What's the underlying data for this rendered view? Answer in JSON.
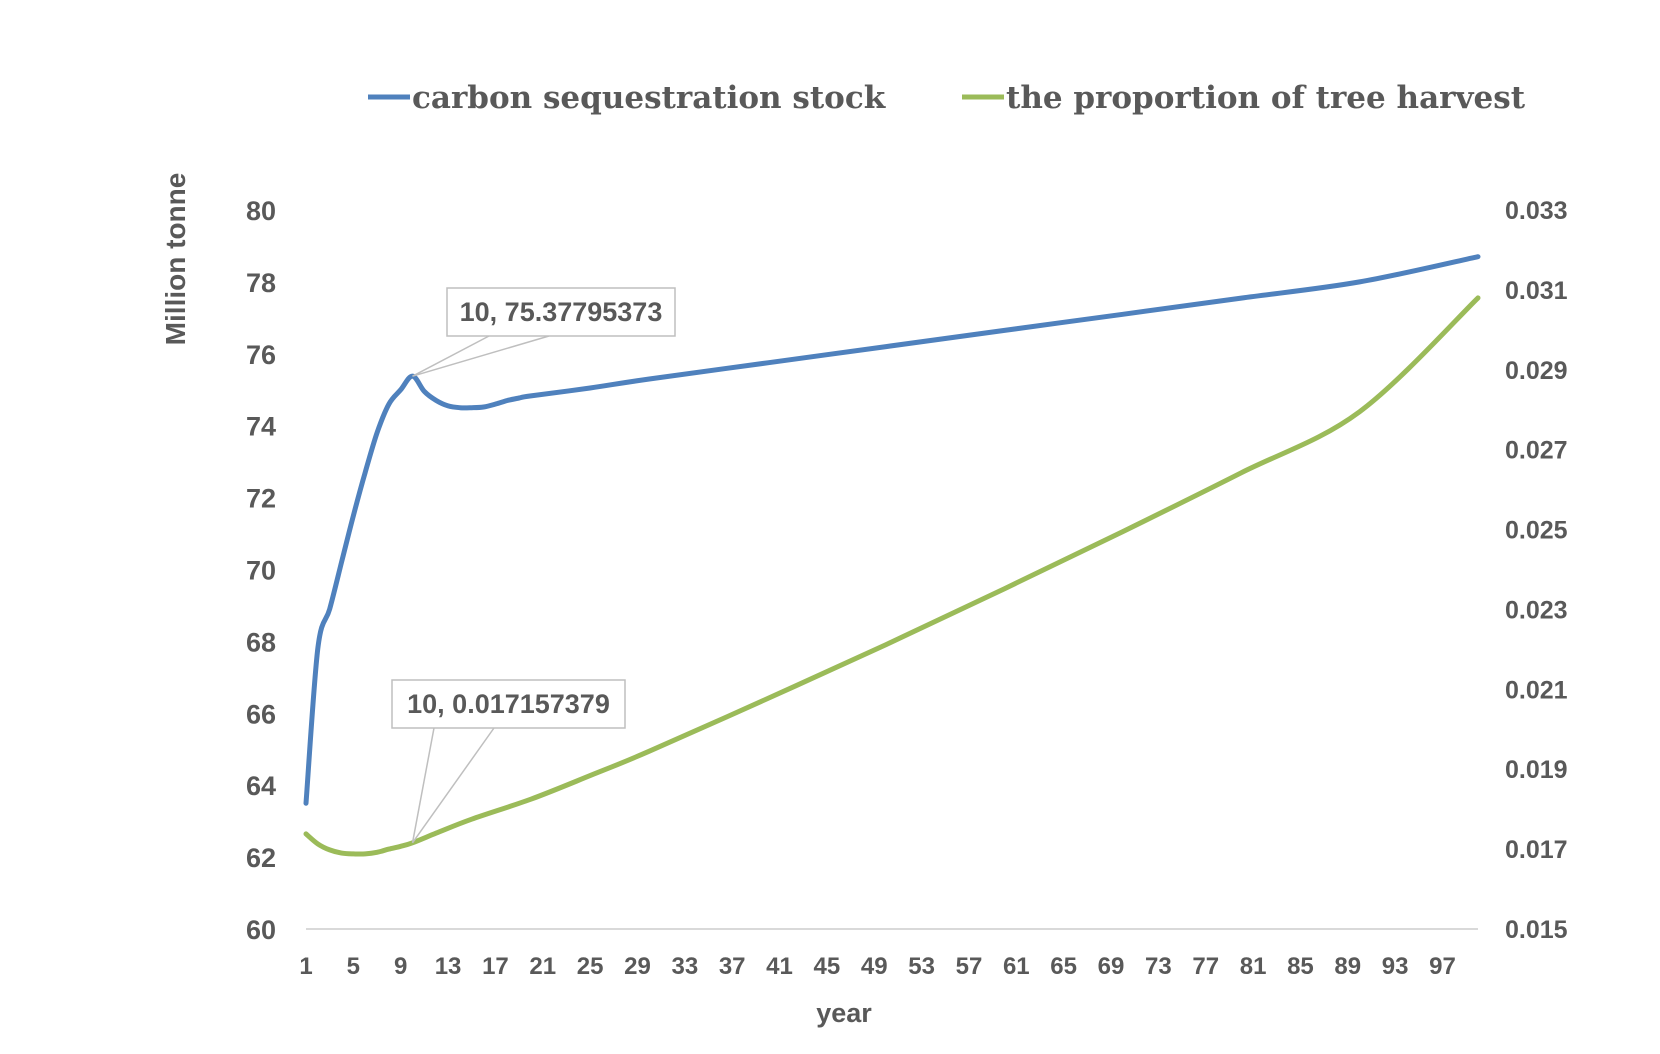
{
  "chart_data": {
    "type": "line",
    "xlabel": "year",
    "ylabel": "Million tonne",
    "y2label": "",
    "ylim": [
      60,
      80
    ],
    "y2lim": [
      0.015,
      0.033
    ],
    "xlim": [
      1,
      100
    ],
    "yticks": [
      "60",
      "62",
      "64",
      "66",
      "68",
      "70",
      "72",
      "74",
      "76",
      "78",
      "80"
    ],
    "y2ticks": [
      "0.015",
      "0.017",
      "0.019",
      "0.021",
      "0.023",
      "0.025",
      "0.027",
      "0.029",
      "0.031",
      "0.033"
    ],
    "xticks": [
      "1",
      "5",
      "9",
      "13",
      "17",
      "21",
      "25",
      "29",
      "33",
      "37",
      "41",
      "45",
      "49",
      "53",
      "57",
      "61",
      "65",
      "69",
      "73",
      "77",
      "81",
      "85",
      "89",
      "93",
      "97"
    ],
    "grid": false,
    "legend_position": "top",
    "series": [
      {
        "name": "carbon sequestration stock",
        "axis": "left",
        "color": "#4F81BD",
        "x": [
          1,
          2,
          3,
          4,
          5,
          6,
          7,
          8,
          9,
          10,
          11,
          12,
          13,
          14,
          15,
          16,
          17,
          18,
          19,
          20,
          25,
          30,
          40,
          50,
          60,
          70,
          80,
          90,
          100
        ],
        "values": [
          63.5,
          67.8,
          68.9,
          70.2,
          71.5,
          72.7,
          73.8,
          74.6,
          75.0,
          75.38,
          74.95,
          74.7,
          74.55,
          74.5,
          74.5,
          74.52,
          74.6,
          74.7,
          74.77,
          74.83,
          75.05,
          75.3,
          75.75,
          76.2,
          76.65,
          77.1,
          77.55,
          78.0,
          78.7
        ]
      },
      {
        "name": "the proportion of tree harvest",
        "axis": "right",
        "color": "#9BBB59",
        "x": [
          1,
          2,
          3,
          4,
          5,
          6,
          7,
          8,
          9,
          10,
          12,
          15,
          20,
          25,
          30,
          40,
          50,
          60,
          70,
          80,
          90,
          100
        ],
        "values": [
          0.01738,
          0.01713,
          0.01698,
          0.0169,
          0.01688,
          0.01688,
          0.01692,
          0.017,
          0.01707,
          0.017157,
          0.0174,
          0.01775,
          0.01825,
          0.01884,
          0.01945,
          0.02077,
          0.02212,
          0.02352,
          0.02495,
          0.02642,
          0.02795,
          0.0308
        ]
      }
    ],
    "annotations": [
      {
        "series": 0,
        "x": 10,
        "y": 75.37795373,
        "text": "10, 75.37795373"
      },
      {
        "series": 1,
        "x": 10,
        "y": 0.017157379,
        "text": "10, 0.017157379"
      }
    ]
  }
}
